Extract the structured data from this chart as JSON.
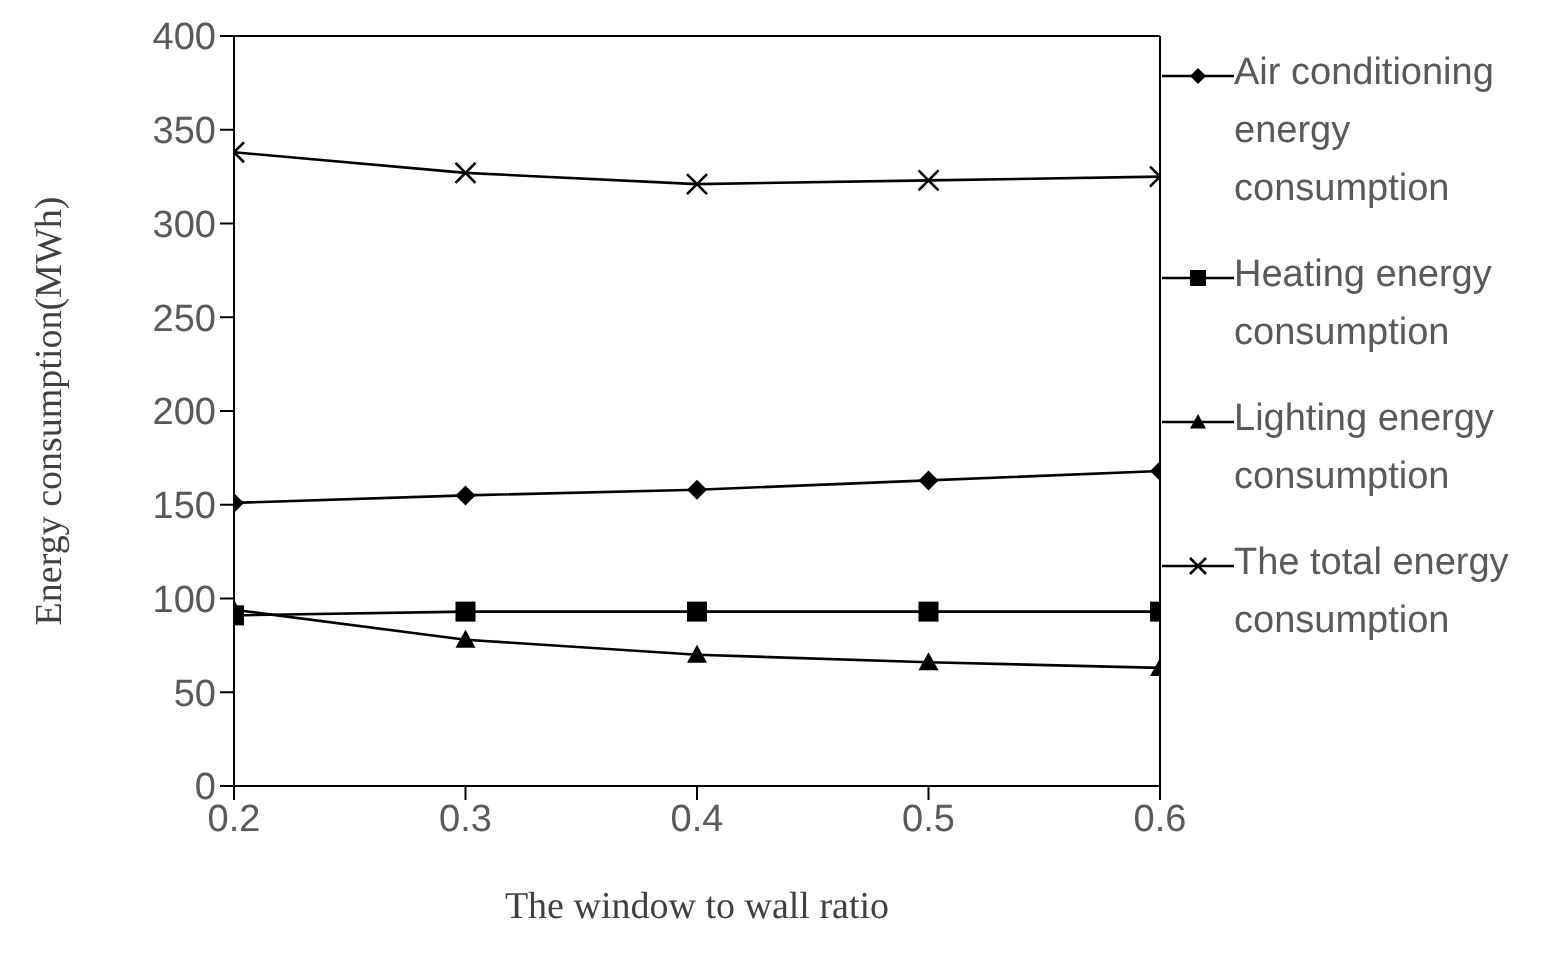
{
  "chart_data": {
    "type": "line",
    "xlabel": "The window to wall ratio",
    "ylabel": "Energy consumption(MWh)",
    "x": [
      0.2,
      0.3,
      0.4,
      0.5,
      0.6
    ],
    "xlim": [
      0.2,
      0.6
    ],
    "xticks": [
      {
        "value": 0.2,
        "label": "0.2"
      },
      {
        "value": 0.3,
        "label": "0.3"
      },
      {
        "value": 0.4,
        "label": "0.4"
      },
      {
        "value": 0.5,
        "label": "0.5"
      },
      {
        "value": 0.6,
        "label": "0.6"
      }
    ],
    "ylim": [
      0,
      400
    ],
    "yticks": [
      0,
      50,
      100,
      150,
      200,
      250,
      300,
      350,
      400
    ],
    "grid": false,
    "legend": "right",
    "series": [
      {
        "name": "Air conditioning energy consumption",
        "color": "#000000",
        "marker": "diamond",
        "values": [
          151,
          155,
          158,
          163,
          168
        ]
      },
      {
        "name": "Heating energy consumption",
        "color": "#000000",
        "marker": "square",
        "values": [
          91,
          93,
          93,
          93,
          93
        ]
      },
      {
        "name": "Lighting energy consumption",
        "color": "#000000",
        "marker": "triangle",
        "values": [
          94,
          78,
          70,
          66,
          63
        ]
      },
      {
        "name": "The total energy consumption",
        "color": "#000000",
        "marker": "cross",
        "values": [
          338,
          327,
          321,
          323,
          325
        ]
      }
    ]
  }
}
